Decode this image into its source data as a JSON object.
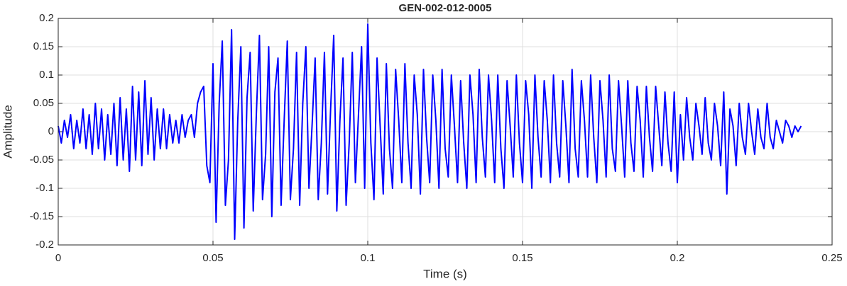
{
  "chart_data": {
    "type": "line",
    "title": "GEN-002-012-0005",
    "x_label": "Time (s)",
    "y_label": "Amplitude",
    "x": [
      0,
      0.001,
      0.002,
      0.003,
      0.004,
      0.005,
      0.006,
      0.007,
      0.008,
      0.009,
      0.01,
      0.011,
      0.012,
      0.013,
      0.014,
      0.015,
      0.016,
      0.017,
      0.018,
      0.019,
      0.02,
      0.021,
      0.022,
      0.023,
      0.024,
      0.025,
      0.026,
      0.027,
      0.028,
      0.029,
      0.03,
      0.031,
      0.032,
      0.033,
      0.034,
      0.035,
      0.036,
      0.037,
      0.038,
      0.039,
      0.04,
      0.041,
      0.042,
      0.043,
      0.044,
      0.045,
      0.046,
      0.047,
      0.048,
      0.049,
      0.05,
      0.051,
      0.052,
      0.053,
      0.054,
      0.055,
      0.056,
      0.057,
      0.058,
      0.059,
      0.06,
      0.061,
      0.062,
      0.063,
      0.064,
      0.065,
      0.066,
      0.067,
      0.068,
      0.069,
      0.07,
      0.071,
      0.072,
      0.073,
      0.074,
      0.075,
      0.076,
      0.077,
      0.078,
      0.079,
      0.08,
      0.081,
      0.082,
      0.083,
      0.084,
      0.085,
      0.086,
      0.087,
      0.088,
      0.089,
      0.09,
      0.091,
      0.092,
      0.093,
      0.094,
      0.095,
      0.096,
      0.097,
      0.098,
      0.099,
      0.1,
      0.101,
      0.102,
      0.103,
      0.104,
      0.105,
      0.106,
      0.107,
      0.108,
      0.109,
      0.11,
      0.111,
      0.112,
      0.113,
      0.114,
      0.115,
      0.116,
      0.117,
      0.118,
      0.119,
      0.12,
      0.121,
      0.122,
      0.123,
      0.124,
      0.125,
      0.126,
      0.127,
      0.128,
      0.129,
      0.13,
      0.131,
      0.132,
      0.133,
      0.134,
      0.135,
      0.136,
      0.137,
      0.138,
      0.139,
      0.14,
      0.141,
      0.142,
      0.143,
      0.144,
      0.145,
      0.146,
      0.147,
      0.148,
      0.149,
      0.15,
      0.151,
      0.152,
      0.153,
      0.154,
      0.155,
      0.156,
      0.157,
      0.158,
      0.159,
      0.16,
      0.161,
      0.162,
      0.163,
      0.164,
      0.165,
      0.166,
      0.167,
      0.168,
      0.169,
      0.17,
      0.171,
      0.172,
      0.173,
      0.174,
      0.175,
      0.176,
      0.177,
      0.178,
      0.179,
      0.18,
      0.181,
      0.182,
      0.183,
      0.184,
      0.185,
      0.186,
      0.187,
      0.188,
      0.189,
      0.19,
      0.191,
      0.192,
      0.193,
      0.194,
      0.195,
      0.196,
      0.197,
      0.198,
      0.199,
      0.2,
      0.201,
      0.202,
      0.203,
      0.204,
      0.205,
      0.206,
      0.207,
      0.208,
      0.209,
      0.21,
      0.211,
      0.212,
      0.213,
      0.214,
      0.215,
      0.216,
      0.217,
      0.218,
      0.219,
      0.22,
      0.221,
      0.222,
      0.223,
      0.224,
      0.225,
      0.226,
      0.227,
      0.228,
      0.229,
      0.23,
      0.231,
      0.232,
      0.233,
      0.234,
      0.235,
      0.236,
      0.237,
      0.238,
      0.239,
      0.24
    ],
    "series": [
      {
        "color": "#0000ff",
        "values": [
          0.01,
          -0.02,
          0.02,
          -0.01,
          0.03,
          -0.03,
          0.02,
          -0.02,
          0.04,
          -0.03,
          0.03,
          -0.04,
          0.05,
          -0.03,
          0.04,
          -0.05,
          0.03,
          -0.04,
          0.05,
          -0.06,
          0.06,
          -0.05,
          0.04,
          -0.07,
          0.08,
          -0.05,
          0.07,
          -0.06,
          0.09,
          -0.04,
          0.06,
          -0.05,
          0.04,
          -0.03,
          0.04,
          -0.03,
          0.03,
          -0.02,
          0.02,
          -0.02,
          0.03,
          -0.01,
          0.02,
          0.03,
          -0.01,
          0.05,
          0.07,
          0.08,
          -0.06,
          -0.09,
          0.12,
          -0.16,
          0.05,
          0.16,
          -0.13,
          -0.05,
          0.18,
          -0.19,
          0.02,
          0.15,
          -0.17,
          0.06,
          0.14,
          -0.14,
          0.03,
          0.17,
          -0.12,
          -0.04,
          0.15,
          -0.15,
          0.07,
          0.13,
          -0.13,
          0.02,
          0.16,
          -0.12,
          -0.03,
          0.14,
          -0.13,
          0.05,
          0.15,
          -0.1,
          0.01,
          0.13,
          -0.12,
          -0.02,
          0.14,
          -0.11,
          0.04,
          0.17,
          -0.14,
          0.02,
          0.13,
          -0.13,
          -0.02,
          0.14,
          -0.09,
          0.03,
          0.15,
          -0.1,
          0.19,
          -0.02,
          -0.12,
          0.13,
          0.01,
          -0.11,
          0.12,
          -0.03,
          -0.1,
          0.11,
          0.02,
          -0.09,
          0.12,
          -0.02,
          -0.1,
          0.1,
          0.03,
          -0.11,
          0.11,
          -0.01,
          -0.09,
          0.1,
          0.02,
          -0.1,
          0.11,
          -0.03,
          -0.08,
          0.1,
          0.01,
          -0.09,
          0.09,
          -0.02,
          -0.1,
          0.1,
          0.03,
          -0.09,
          0.11,
          -0.01,
          -0.08,
          0.1,
          0.02,
          -0.09,
          0.1,
          -0.03,
          -0.1,
          0.09,
          0.01,
          -0.08,
          0.1,
          -0.02,
          -0.09,
          0.09,
          0.03,
          -0.1,
          0.1,
          -0.01,
          -0.08,
          0.09,
          0.02,
          -0.09,
          0.1,
          -0.02,
          -0.08,
          0.09,
          0.01,
          -0.09,
          0.11,
          -0.03,
          -0.08,
          0.09,
          0.02,
          -0.08,
          0.1,
          -0.01,
          -0.09,
          0.09,
          0.02,
          -0.08,
          0.1,
          -0.03,
          -0.07,
          0.09,
          0.01,
          -0.08,
          0.09,
          -0.02,
          -0.07,
          0.08,
          0.02,
          -0.08,
          0.08,
          -0.01,
          -0.07,
          0.08,
          0.01,
          -0.06,
          0.07,
          -0.02,
          -0.07,
          0.07,
          -0.09,
          0.03,
          -0.05,
          0.06,
          -0.01,
          -0.05,
          0.05,
          0.01,
          -0.04,
          0.06,
          -0.02,
          -0.05,
          0.05,
          0.01,
          -0.06,
          0.07,
          -0.11,
          0.04,
          0.01,
          -0.06,
          0.05,
          -0.01,
          -0.04,
          0.05,
          0.0,
          -0.04,
          0.04,
          -0.01,
          -0.03,
          0.05,
          -0.01,
          -0.03,
          0.02,
          0.0,
          -0.02,
          0.02,
          0.01,
          -0.01,
          0.01,
          0.0,
          0.01
        ]
      }
    ],
    "xlim": [
      0,
      0.25
    ],
    "xticks": [
      0,
      0.05,
      0.1,
      0.15,
      0.2,
      0.25
    ],
    "ylim": [
      -0.2,
      0.2
    ],
    "yticks": [
      -0.2,
      -0.15,
      -0.1,
      -0.05,
      0,
      0.05,
      0.1,
      0.15,
      0.2
    ],
    "grid": true
  }
}
